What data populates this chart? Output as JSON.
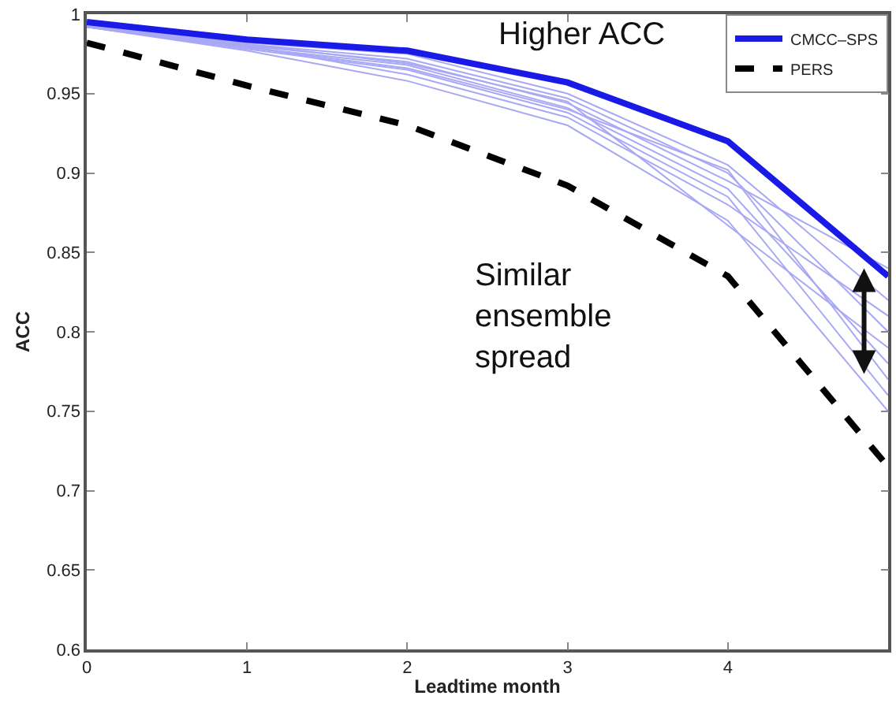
{
  "chart_data": {
    "type": "line",
    "xlabel": "Leadtime month",
    "ylabel": "ACC",
    "x": [
      0,
      1,
      2,
      3,
      4,
      5
    ],
    "series": [
      {
        "color": "#a8a8f5",
        "values": [
          0.993,
          0.982,
          0.975,
          0.95,
          0.905,
          0.82
        ]
      },
      {
        "color": "#a8a8f5",
        "values": [
          0.993,
          0.981,
          0.972,
          0.947,
          0.9,
          0.8
        ]
      },
      {
        "color": "#a8a8f5",
        "values": [
          0.992,
          0.98,
          0.97,
          0.944,
          0.895,
          0.84
        ]
      },
      {
        "color": "#a8a8f5",
        "values": [
          0.993,
          0.979,
          0.968,
          0.941,
          0.89,
          0.78
        ]
      },
      {
        "color": "#a8a8f5",
        "values": [
          0.992,
          0.978,
          0.965,
          0.938,
          0.885,
          0.76
        ]
      },
      {
        "color": "#a8a8f5",
        "values": [
          0.993,
          0.98,
          0.962,
          0.935,
          0.88,
          0.81
        ]
      },
      {
        "color": "#a8a8f5",
        "values": [
          0.992,
          0.977,
          0.958,
          0.93,
          0.87,
          0.75
        ]
      },
      {
        "color": "#a8a8f5",
        "values": [
          0.993,
          0.981,
          0.969,
          0.945,
          0.867,
          0.79
        ]
      },
      {
        "color": "#a8a8f5",
        "values": [
          0.992,
          0.979,
          0.966,
          0.94,
          0.902,
          0.77
        ]
      },
      {
        "name": "CMCC–SPS",
        "color": "#1a1ae6",
        "line_style": "solid",
        "values": [
          0.995,
          0.984,
          0.977,
          0.957,
          0.92,
          0.835
        ]
      },
      {
        "name": "PERS",
        "color": "#000000",
        "line_style": "dashed",
        "values": [
          0.982,
          0.955,
          0.93,
          0.892,
          0.835,
          0.715
        ]
      }
    ],
    "xlim": [
      0,
      5
    ],
    "xticks": [
      0,
      1,
      2,
      3,
      4
    ],
    "ylim": [
      0.6,
      1
    ],
    "yticks": [
      0.6,
      0.65,
      0.7,
      0.75,
      0.8,
      0.85,
      0.9,
      0.95,
      1
    ],
    "legend": "top right",
    "marker": "none",
    "annotations": [
      "Higher ACC",
      "Similar\nensemble\nspread"
    ]
  }
}
